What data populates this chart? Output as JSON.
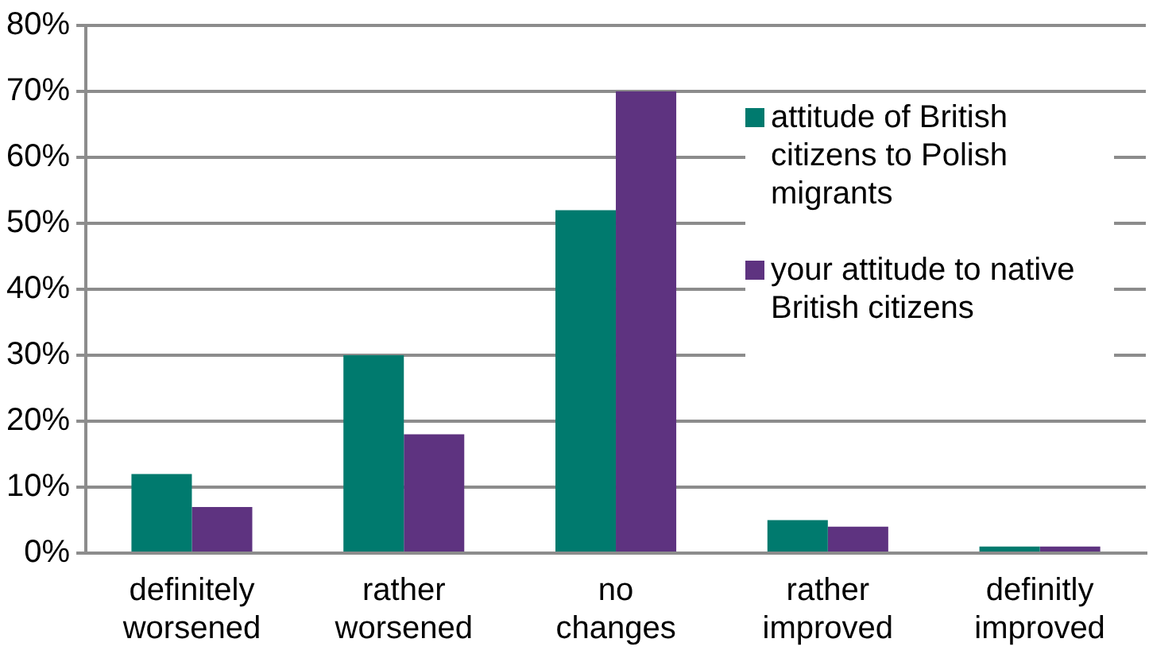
{
  "chart_data": {
    "type": "bar",
    "categories": [
      "definitely worsened",
      "rather worsened",
      "no changes",
      "rather improved",
      "definitly improved"
    ],
    "series": [
      {
        "name": "attitude of British citizens to Polish migrants",
        "color": "#007a6e",
        "values": [
          12,
          30,
          52,
          5,
          1
        ]
      },
      {
        "name": "your attitude to native British citizens",
        "color": "#5e3380",
        "values": [
          7,
          18,
          70,
          4,
          1
        ]
      }
    ],
    "ylim": [
      0,
      80
    ],
    "yticks": [
      {
        "value": 0,
        "label": "0%"
      },
      {
        "value": 10,
        "label": "10%"
      },
      {
        "value": 20,
        "label": "20%"
      },
      {
        "value": 30,
        "label": "30%"
      },
      {
        "value": 40,
        "label": "40%"
      },
      {
        "value": 50,
        "label": "50%"
      },
      {
        "value": 60,
        "label": "60%"
      },
      {
        "value": 70,
        "label": "70%"
      },
      {
        "value": 80,
        "label": "80%"
      }
    ],
    "grid": "y",
    "legend": "top right"
  }
}
